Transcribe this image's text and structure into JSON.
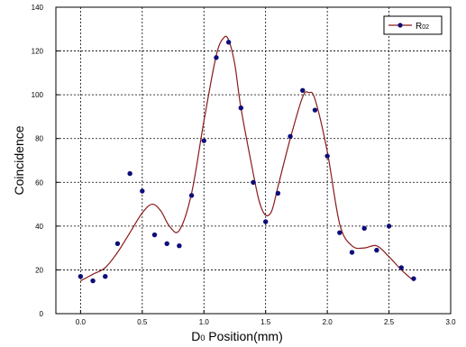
{
  "chart_data": {
    "type": "scatter",
    "xlabel_main": "D",
    "xlabel_sub": "0",
    "xlabel_rest": " Position(mm)",
    "ylabel": "Coincidence",
    "xlim": [
      -0.2,
      3.0
    ],
    "ylim": [
      0,
      140
    ],
    "xticks": [
      "0.0",
      "0.5",
      "1.0",
      "1.5",
      "2.0",
      "2.5",
      "3.0"
    ],
    "xtick_values": [
      0.0,
      0.5,
      1.0,
      1.5,
      2.0,
      2.5,
      3.0
    ],
    "yticks": [
      "0",
      "20",
      "40",
      "60",
      "80",
      "100",
      "120",
      "140"
    ],
    "ytick_values": [
      0,
      20,
      40,
      60,
      80,
      100,
      120,
      140
    ],
    "grid": true,
    "legend_position": "top-right",
    "series": [
      {
        "name_main": "R",
        "name_sub": "02",
        "marker_color": "#0d0d7a",
        "line_color": "#8b1a1a",
        "x": [
          0.0,
          0.1,
          0.2,
          0.3,
          0.4,
          0.5,
          0.6,
          0.7,
          0.8,
          0.9,
          1.0,
          1.1,
          1.2,
          1.3,
          1.4,
          1.5,
          1.6,
          1.7,
          1.8,
          1.9,
          2.0,
          2.1,
          2.2,
          2.3,
          2.4,
          2.5,
          2.6,
          2.7
        ],
        "y": [
          17,
          15,
          17,
          32,
          64,
          56,
          36,
          32,
          31,
          54,
          79,
          117,
          124,
          94,
          60,
          42,
          55,
          81,
          102,
          93,
          72,
          37,
          28,
          39,
          29,
          40,
          21,
          16
        ]
      }
    ],
    "fit_curve": {
      "x": [
        0.0,
        0.1,
        0.2,
        0.3,
        0.4,
        0.5,
        0.58,
        0.65,
        0.72,
        0.8,
        0.9,
        1.0,
        1.1,
        1.16,
        1.2,
        1.25,
        1.3,
        1.4,
        1.45,
        1.5,
        1.55,
        1.6,
        1.7,
        1.8,
        1.85,
        1.9,
        2.0,
        2.1,
        2.2,
        2.3,
        2.4,
        2.5,
        2.6,
        2.7
      ],
      "y": [
        15,
        18,
        21,
        28,
        37,
        46,
        50,
        47,
        40,
        38,
        55,
        88,
        118,
        126,
        125,
        114,
        94,
        64,
        51,
        45,
        47,
        58,
        80,
        99,
        101,
        98,
        74,
        41,
        31,
        30,
        31,
        26,
        20,
        15
      ]
    }
  }
}
